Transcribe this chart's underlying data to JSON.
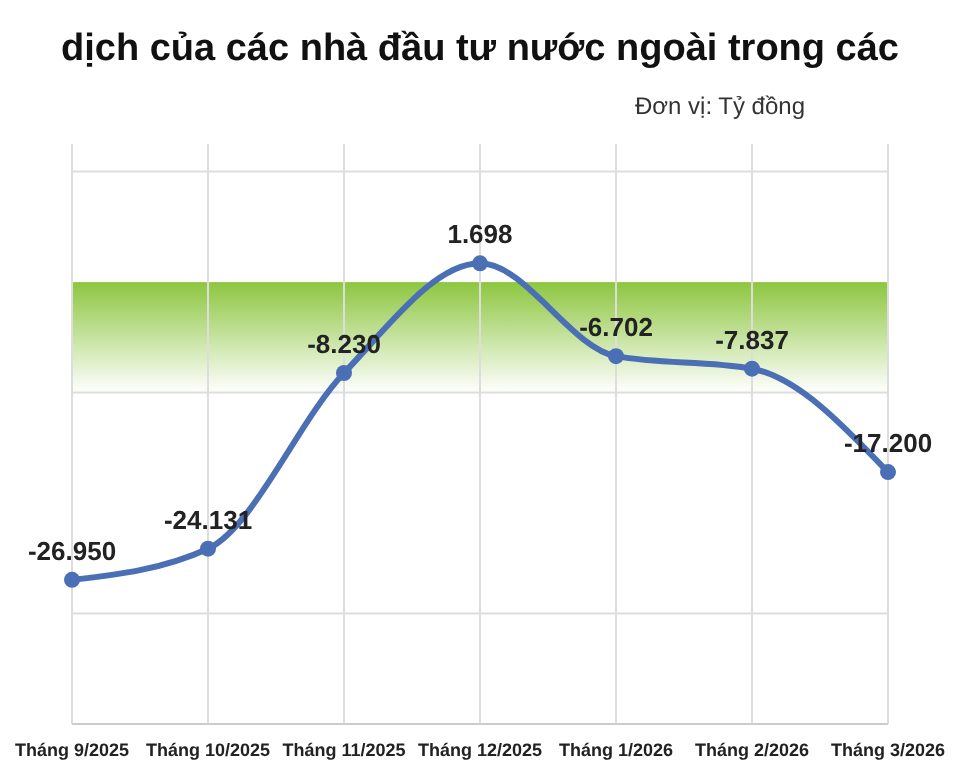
{
  "chart_data": {
    "type": "line",
    "title": "dịch của các nhà đầu tư nước ngoài trong các",
    "subtitle": "Đơn vị: Tỷ đồng",
    "categories": [
      "Tháng 9/2025",
      "Tháng 10/2025",
      "Tháng 11/2025",
      "Tháng 12/2025",
      "Tháng 1/2026",
      "Tháng 2/2026",
      "Tháng 3/2026"
    ],
    "series": [
      {
        "color": "#4a6fb5",
        "values": [
          -26950,
          -24131,
          -8230,
          1698,
          -6702,
          -7837,
          -17200
        ],
        "value_labels": [
          "-26.950",
          "-24.131",
          "-8.230",
          "1.698",
          "-6.702",
          "-7.837",
          "-17.200"
        ]
      }
    ],
    "ylim": [
      -40000,
      12500
    ],
    "yticks": [
      {
        "value": -30000,
        "label": null
      },
      {
        "value": -10000,
        "label": null
      },
      {
        "value": 10000,
        "label": null
      }
    ],
    "tick_labels": "x",
    "grid": true,
    "marker": "circle",
    "line_style": "solid",
    "bands": [
      {
        "axis": "y",
        "from": -10000,
        "to": 0,
        "color": "#8dc63f"
      }
    ]
  }
}
